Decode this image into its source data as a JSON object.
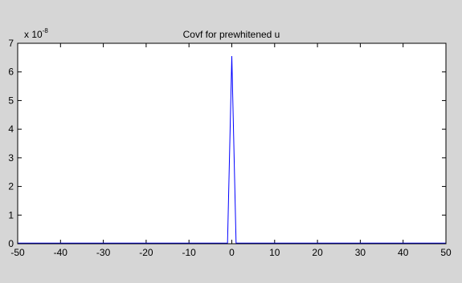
{
  "chart_data": {
    "type": "line",
    "title": "Covf for prewhitened u",
    "xlabel": "",
    "ylabel": "",
    "y_scale_label": {
      "base": "x 10",
      "exponent": "-8"
    },
    "xlim": [
      -50,
      50
    ],
    "ylim": [
      0,
      7
    ],
    "xticks": [
      -50,
      -40,
      -30,
      -20,
      -10,
      0,
      10,
      20,
      30,
      40,
      50
    ],
    "yticks": [
      0,
      1,
      2,
      3,
      4,
      5,
      6,
      7
    ],
    "grid": false,
    "series": [
      {
        "color": "#0000ff",
        "x": [
          -50,
          -2,
          -1,
          0,
          1,
          2,
          50
        ],
        "y": [
          0.02,
          0.02,
          0.02,
          6.55,
          0.02,
          0.02,
          0.02
        ]
      }
    ]
  },
  "colors": {
    "background": "#d6d6d6",
    "plot_area": "#ffffff",
    "axes": "#000000",
    "line": "#0000ff"
  }
}
